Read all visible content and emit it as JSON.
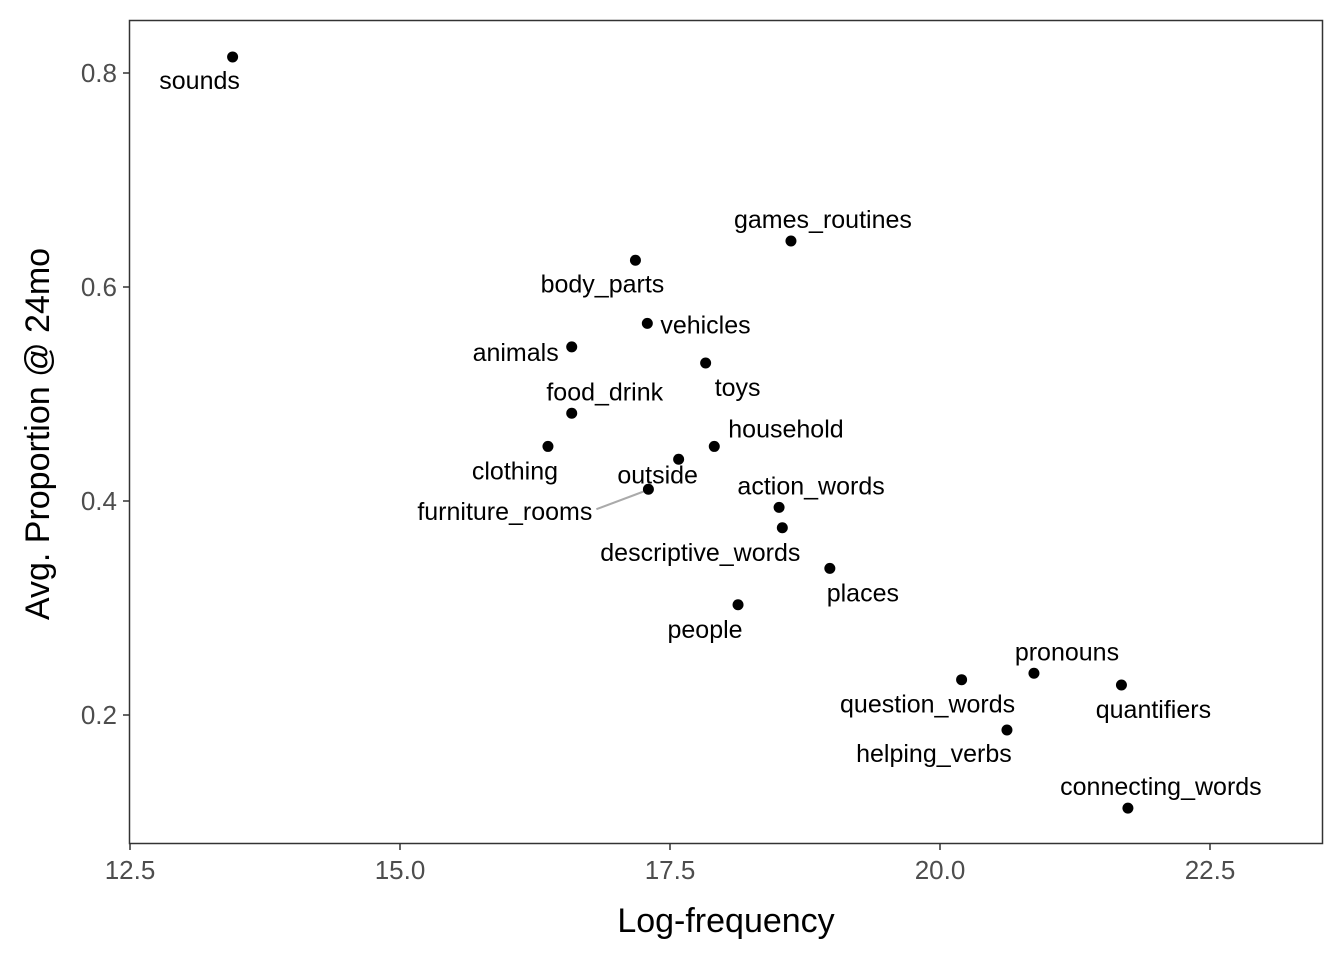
{
  "chart_data": {
    "type": "scatter",
    "xlabel": "Log-frequency",
    "ylabel": "Avg. Proportion @ 24mo",
    "xlim": [
      12.5,
      23.4
    ],
    "ylim": [
      0.08,
      0.85
    ],
    "x_ticks": [
      12.5,
      15.0,
      17.5,
      20.0,
      22.5
    ],
    "x_tick_labels": [
      "12.5",
      "15.0",
      "17.5",
      "20.0",
      "22.5"
    ],
    "y_ticks": [
      0.2,
      0.4,
      0.6,
      0.8
    ],
    "y_tick_labels": [
      "0.2",
      "0.4",
      "0.6",
      "0.8"
    ],
    "grid": false,
    "points": [
      {
        "label": "sounds",
        "x": 13.45,
        "y": 0.815
      },
      {
        "label": "games_routines",
        "x": 18.62,
        "y": 0.643
      },
      {
        "label": "body_parts",
        "x": 17.18,
        "y": 0.625
      },
      {
        "label": "vehicles",
        "x": 17.29,
        "y": 0.566
      },
      {
        "label": "animals",
        "x": 16.59,
        "y": 0.544
      },
      {
        "label": "toys",
        "x": 17.83,
        "y": 0.529
      },
      {
        "label": "food_drink",
        "x": 16.59,
        "y": 0.482
      },
      {
        "label": "household",
        "x": 17.91,
        "y": 0.451
      },
      {
        "label": "clothing",
        "x": 16.37,
        "y": 0.451
      },
      {
        "label": "outside",
        "x": 17.58,
        "y": 0.439
      },
      {
        "label": "furniture_rooms",
        "x": 17.3,
        "y": 0.411
      },
      {
        "label": "action_words",
        "x": 18.51,
        "y": 0.394
      },
      {
        "label": "descriptive_words",
        "x": 18.54,
        "y": 0.375
      },
      {
        "label": "places",
        "x": 18.98,
        "y": 0.337
      },
      {
        "label": "people",
        "x": 18.13,
        "y": 0.303
      },
      {
        "label": "pronouns",
        "x": 20.87,
        "y": 0.239
      },
      {
        "label": "question_words",
        "x": 20.2,
        "y": 0.233
      },
      {
        "label": "quantifiers",
        "x": 21.68,
        "y": 0.228
      },
      {
        "label": "helping_verbs",
        "x": 20.62,
        "y": 0.186
      },
      {
        "label": "connecting_words",
        "x": 21.74,
        "y": 0.113
      }
    ]
  }
}
